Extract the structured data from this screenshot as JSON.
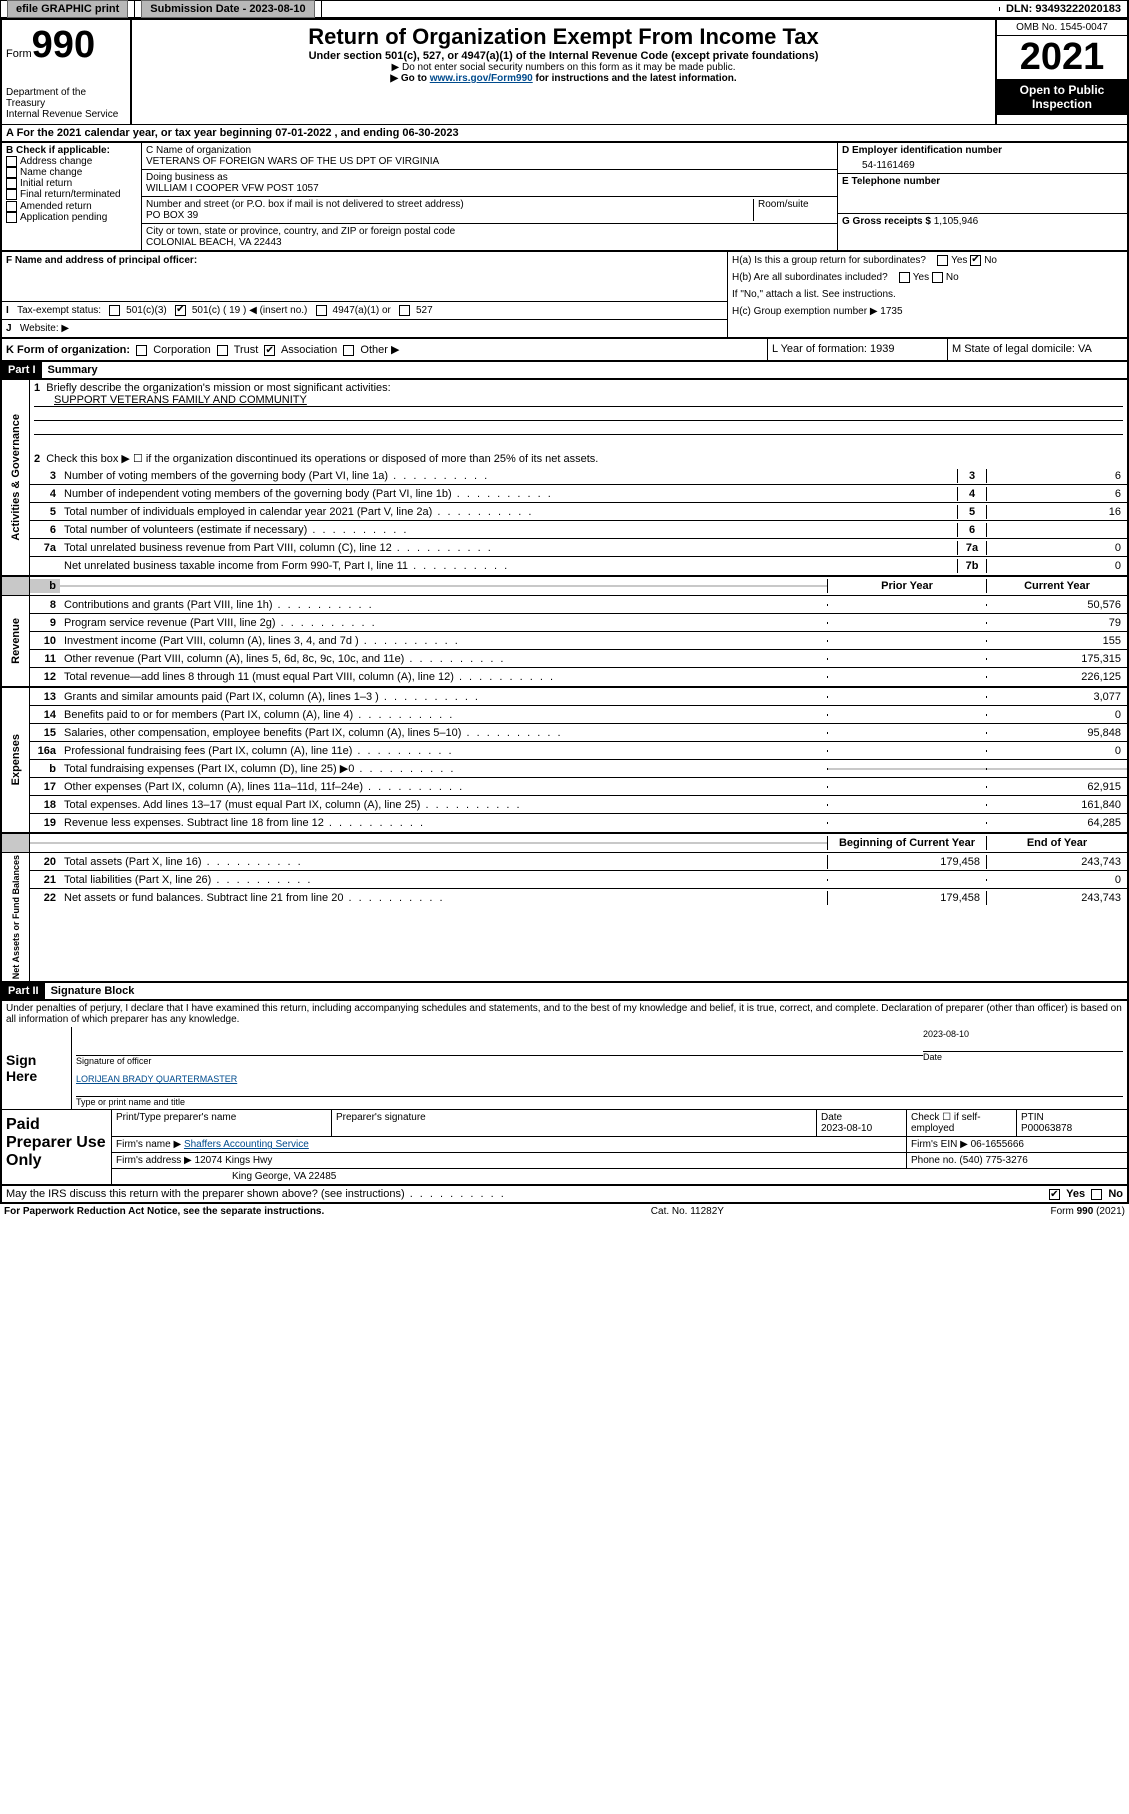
{
  "topbar": {
    "efile": "efile GRAPHIC print",
    "submission_label": "Submission Date - 2023-08-10",
    "dln_label": "DLN: 93493222020183"
  },
  "header": {
    "form_word": "Form",
    "form_num": "990",
    "title": "Return of Organization Exempt From Income Tax",
    "subtitle": "Under section 501(c), 527, or 4947(a)(1) of the Internal Revenue Code (except private foundations)",
    "note1": "▶ Do not enter social security numbers on this form as it may be made public.",
    "note2_pre": "▶ Go to ",
    "note2_link": "www.irs.gov/Form990",
    "note2_post": " for instructions and the latest information.",
    "omb": "OMB No. 1545-0047",
    "year": "2021",
    "open": "Open to Public Inspection",
    "dept": "Department of the Treasury\nInternal Revenue Service"
  },
  "section_a": "A For the 2021 calendar year, or tax year beginning 07-01-2022    , and ending 06-30-2023",
  "section_b": {
    "label": "B Check if applicable:",
    "items": [
      "Address change",
      "Name change",
      "Initial return",
      "Final return/terminated",
      "Amended return",
      "Application pending"
    ]
  },
  "section_c": {
    "name_label": "C Name of organization",
    "name": "VETERANS OF FOREIGN WARS OF THE US DPT OF VIRGINIA",
    "dba_label": "Doing business as",
    "dba": "WILLIAM I COOPER VFW POST 1057",
    "street_label": "Number and street (or P.O. box if mail is not delivered to street address)",
    "room_label": "Room/suite",
    "street": "PO BOX 39",
    "city_label": "City or town, state or province, country, and ZIP or foreign postal code",
    "city": "COLONIAL BEACH, VA  22443"
  },
  "section_d": {
    "label": "D Employer identification number",
    "value": "54-1161469"
  },
  "section_e": {
    "label": "E Telephone number",
    "value": ""
  },
  "section_g": {
    "label": "G Gross receipts $",
    "value": "1,105,946"
  },
  "section_f": {
    "label": "F  Name and address of principal officer:"
  },
  "section_h": {
    "a": "H(a)  Is this a group return for subordinates?",
    "b": "H(b)  Are all subordinates included?",
    "b_note": "If \"No,\" attach a list. See instructions.",
    "c": "H(c)  Group exemption number ▶   1735"
  },
  "section_i": {
    "label": "Tax-exempt status:",
    "opts": [
      "501(c)(3)",
      "501(c) ( 19 ) ◀ (insert no.)",
      "4947(a)(1) or",
      "527"
    ]
  },
  "section_j": {
    "label": "Website: ▶"
  },
  "section_k": {
    "label": "K Form of organization:",
    "opts": [
      "Corporation",
      "Trust",
      "Association",
      "Other ▶"
    ]
  },
  "section_l": {
    "label": "L Year of formation: 1939"
  },
  "section_m": {
    "label": "M State of legal domicile: VA"
  },
  "part1": {
    "hdr": "Part I",
    "title": "Summary",
    "line1_label": "Briefly describe the organization's mission or most significant activities:",
    "line1_text": "SUPPORT VETERANS FAMILY AND COMMUNITY",
    "line2": "Check this box ▶ ☐  if the organization discontinued its operations or disposed of more than 25% of its net assets.",
    "governance": [
      {
        "n": "3",
        "d": "Number of voting members of the governing body (Part VI, line 1a)",
        "k": "3",
        "v": "6"
      },
      {
        "n": "4",
        "d": "Number of independent voting members of the governing body (Part VI, line 1b)",
        "k": "4",
        "v": "6"
      },
      {
        "n": "5",
        "d": "Total number of individuals employed in calendar year 2021 (Part V, line 2a)",
        "k": "5",
        "v": "16"
      },
      {
        "n": "6",
        "d": "Total number of volunteers (estimate if necessary)",
        "k": "6",
        "v": ""
      },
      {
        "n": "7a",
        "d": "Total unrelated business revenue from Part VIII, column (C), line 12",
        "k": "7a",
        "v": "0"
      },
      {
        "n": "",
        "d": "Net unrelated business taxable income from Form 990-T, Part I, line 11",
        "k": "7b",
        "v": "0"
      }
    ],
    "prior_hdr": "Prior Year",
    "curr_hdr": "Current Year",
    "revenue": [
      {
        "n": "8",
        "d": "Contributions and grants (Part VIII, line 1h)",
        "p": "",
        "c": "50,576"
      },
      {
        "n": "9",
        "d": "Program service revenue (Part VIII, line 2g)",
        "p": "",
        "c": "79"
      },
      {
        "n": "10",
        "d": "Investment income (Part VIII, column (A), lines 3, 4, and 7d )",
        "p": "",
        "c": "155"
      },
      {
        "n": "11",
        "d": "Other revenue (Part VIII, column (A), lines 5, 6d, 8c, 9c, 10c, and 11e)",
        "p": "",
        "c": "175,315"
      },
      {
        "n": "12",
        "d": "Total revenue—add lines 8 through 11 (must equal Part VIII, column (A), line 12)",
        "p": "",
        "c": "226,125"
      }
    ],
    "expenses": [
      {
        "n": "13",
        "d": "Grants and similar amounts paid (Part IX, column (A), lines 1–3 )",
        "p": "",
        "c": "3,077"
      },
      {
        "n": "14",
        "d": "Benefits paid to or for members (Part IX, column (A), line 4)",
        "p": "",
        "c": "0"
      },
      {
        "n": "15",
        "d": "Salaries, other compensation, employee benefits (Part IX, column (A), lines 5–10)",
        "p": "",
        "c": "95,848"
      },
      {
        "n": "16a",
        "d": "Professional fundraising fees (Part IX, column (A), line 11e)",
        "p": "",
        "c": "0"
      },
      {
        "n": "b",
        "d": "Total fundraising expenses (Part IX, column (D), line 25) ▶0",
        "p": "shade",
        "c": "shade"
      },
      {
        "n": "17",
        "d": "Other expenses (Part IX, column (A), lines 11a–11d, 11f–24e)",
        "p": "",
        "c": "62,915"
      },
      {
        "n": "18",
        "d": "Total expenses. Add lines 13–17 (must equal Part IX, column (A), line 25)",
        "p": "",
        "c": "161,840"
      },
      {
        "n": "19",
        "d": "Revenue less expenses. Subtract line 18 from line 12",
        "p": "",
        "c": "64,285"
      }
    ],
    "net_hdr1": "Beginning of Current Year",
    "net_hdr2": "End of Year",
    "netassets": [
      {
        "n": "20",
        "d": "Total assets (Part X, line 16)",
        "p": "179,458",
        "c": "243,743"
      },
      {
        "n": "21",
        "d": "Total liabilities (Part X, line 26)",
        "p": "",
        "c": "0"
      },
      {
        "n": "22",
        "d": "Net assets or fund balances. Subtract line 21 from line 20",
        "p": "179,458",
        "c": "243,743"
      }
    ],
    "vlabels": {
      "gov": "Activities & Governance",
      "rev": "Revenue",
      "exp": "Expenses",
      "net": "Net Assets or\nFund Balances"
    }
  },
  "part2": {
    "hdr": "Part II",
    "title": "Signature Block",
    "declaration": "Under penalties of perjury, I declare that I have examined this return, including accompanying schedules and statements, and to the best of my knowledge and belief, it is true, correct, and complete. Declaration of preparer (other than officer) is based on all information of which preparer has any knowledge.",
    "sign_here": "Sign Here",
    "sig_officer": "Signature of officer",
    "sig_date": "2023-08-10",
    "date_label": "Date",
    "officer_name": "LORIJEAN BRADY QUARTERMASTER",
    "type_name": "Type or print name and title",
    "paid": "Paid Preparer Use Only",
    "prep_name_label": "Print/Type preparer's name",
    "prep_sig_label": "Preparer's signature",
    "prep_date_label": "Date",
    "prep_date": "2023-08-10",
    "check_if": "Check ☐ if self-employed",
    "ptin_label": "PTIN",
    "ptin": "P00063878",
    "firm_name_label": "Firm's name    ▶",
    "firm_name": "Shaffers Accounting Service",
    "firm_ein_label": "Firm's EIN ▶",
    "firm_ein": "06-1655666",
    "firm_addr_label": "Firm's address ▶",
    "firm_addr1": "12074 Kings Hwy",
    "firm_addr2": "King George, VA  22485",
    "phone_label": "Phone no.",
    "phone": "(540) 775-3276",
    "may_irs": "May the IRS discuss this return with the preparer shown above? (see instructions)"
  },
  "footer": {
    "left": "For Paperwork Reduction Act Notice, see the separate instructions.",
    "mid": "Cat. No. 11282Y",
    "right": "Form 990 (2021)"
  },
  "colors": {
    "link": "#004b8d",
    "shade": "#c8c8c8",
    "btn": "#b8b8b8"
  }
}
